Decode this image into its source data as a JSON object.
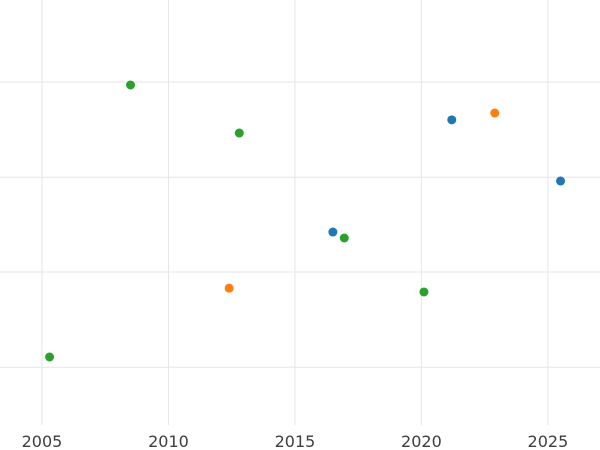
{
  "chart_data": {
    "type": "scatter",
    "title": "",
    "xlabel": "",
    "ylabel": "",
    "x_ticks": [
      "2005",
      "2010",
      "2015",
      "2020",
      "2025"
    ],
    "x_tick_values": [
      2005,
      2010,
      2015,
      2020,
      2025
    ],
    "xlim": [
      2003.34,
      2027.06
    ],
    "ylim": [
      0,
      1
    ],
    "grid": true,
    "legend_position": "none",
    "grid_color": "#e6e6e6",
    "background_color": "#ffffff",
    "marker_radius": 4.5,
    "y_gridlines": [
      0.136,
      0.36,
      0.583,
      0.807
    ],
    "series": [
      {
        "name": "green",
        "color": "#2ca02c",
        "points": [
          [
            2005.3,
            0.16
          ],
          [
            2008.5,
            0.8
          ],
          [
            2012.8,
            0.687
          ],
          [
            2016.95,
            0.44
          ],
          [
            2020.1,
            0.313
          ]
        ]
      },
      {
        "name": "blue",
        "color": "#1f77b4",
        "points": [
          [
            2016.5,
            0.454
          ],
          [
            2021.2,
            0.718
          ],
          [
            2025.5,
            0.574
          ]
        ]
      },
      {
        "name": "orange",
        "color": "#ff7f0e",
        "points": [
          [
            2012.4,
            0.322
          ],
          [
            2022.9,
            0.734
          ]
        ]
      }
    ]
  }
}
